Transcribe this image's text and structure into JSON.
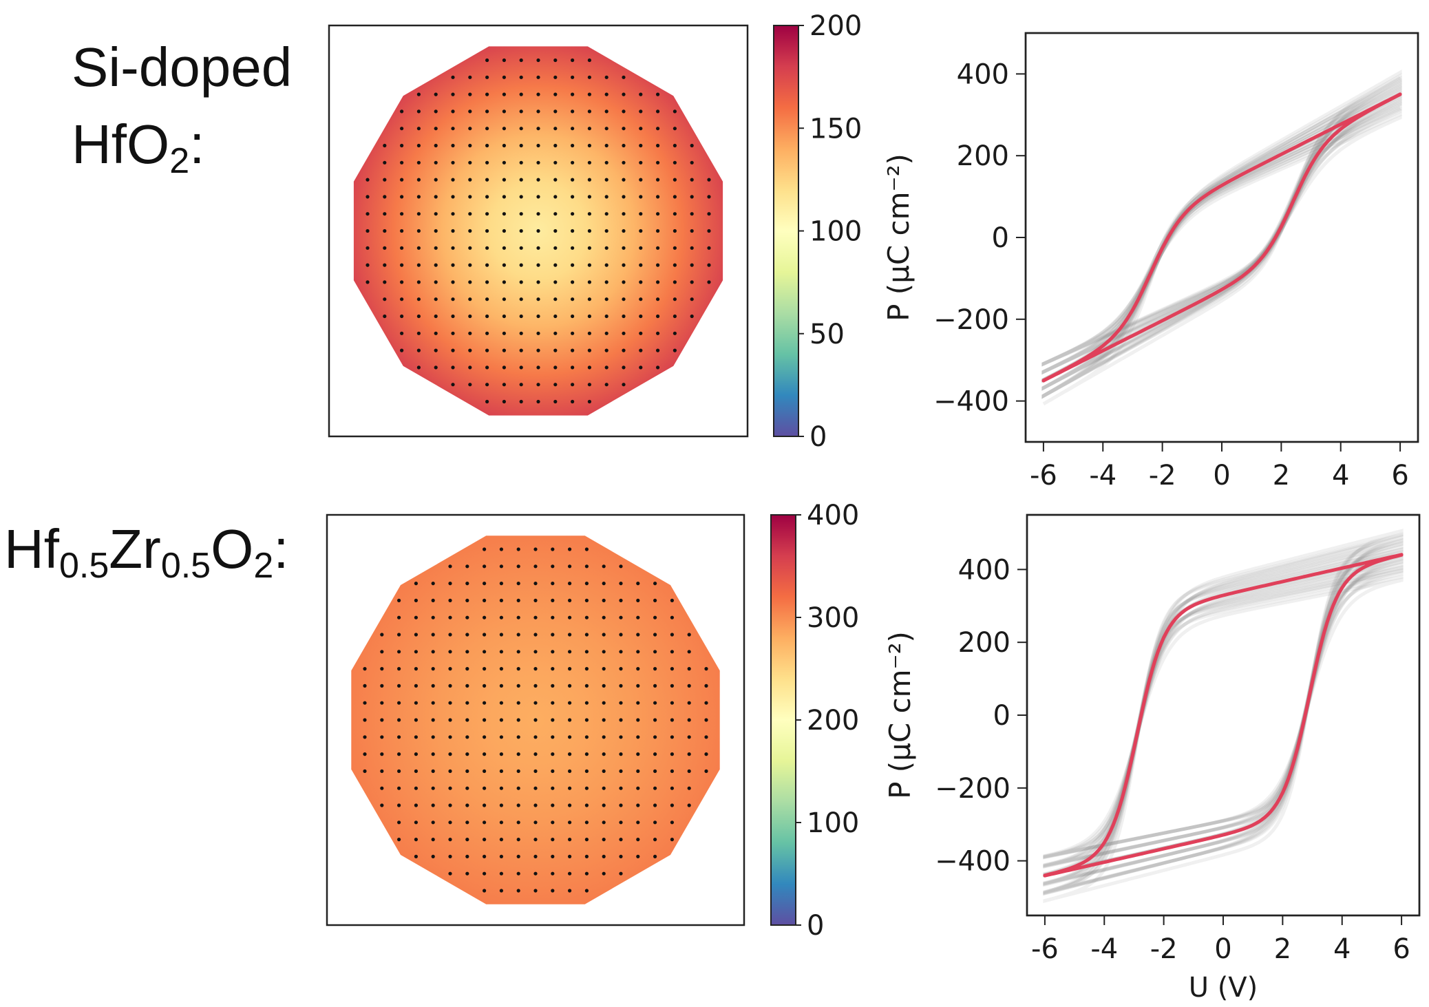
{
  "labels": {
    "row1_line1": "Si-doped",
    "row1_base": "HfO",
    "row1_sub": "2",
    "row1_colon": ":",
    "row2_hf": "Hf",
    "row2_hf_sub": "0.5",
    "row2_zr": "Zr",
    "row2_zr_sub": "0.5",
    "row2_o": "O",
    "row2_o_sub": "2",
    "row2_colon": ":"
  },
  "chart_data": [
    {
      "type": "heatmap",
      "description_shape": "wafer",
      "colorbar": {
        "range": [
          0,
          200
        ],
        "ticks": [
          "0",
          "50",
          "100",
          "150",
          "200"
        ],
        "colormap": "Spectral_r"
      },
      "center_value": 112,
      "edge_value": 178
    },
    {
      "type": "line",
      "ylabel": "P (μC cm⁻²)",
      "xlabel": "",
      "xlim": [
        -6.6,
        6.6
      ],
      "ylim": [
        -500,
        500
      ],
      "x_ticks": [
        "-6",
        "-4",
        "-2",
        "0",
        "2",
        "4",
        "6"
      ],
      "y_ticks": [
        "400",
        "200",
        "0",
        "−200",
        "−400"
      ],
      "loop": {
        "Pmax": 350,
        "Pr": 130,
        "Ec": 2.4,
        "Umax": 6,
        "sharpness": 0.95
      },
      "band_color": "#8a8a8a",
      "line_color": "#e0405a"
    },
    {
      "type": "heatmap",
      "description_shape": "wafer",
      "colorbar": {
        "range": [
          0,
          400
        ],
        "ticks": [
          "0",
          "100",
          "200",
          "300",
          "400"
        ],
        "colormap": "Spectral_r"
      },
      "center_value": 280,
      "edge_value": 310
    },
    {
      "type": "line",
      "ylabel": "P (μC cm⁻²)",
      "xlabel": "U (V)",
      "xlim": [
        -6.6,
        6.6
      ],
      "ylim": [
        -550,
        550
      ],
      "x_ticks": [
        "-6",
        "-4",
        "-2",
        "0",
        "2",
        "4",
        "6"
      ],
      "y_ticks": [
        "400",
        "200",
        "0",
        "−200",
        "−400"
      ],
      "loop": {
        "Pmax": 440,
        "Pr": 330,
        "Ec": 2.9,
        "Umax": 6,
        "sharpness": 1.1
      },
      "band_color": "#8a8a8a",
      "line_color": "#e0405a"
    }
  ]
}
